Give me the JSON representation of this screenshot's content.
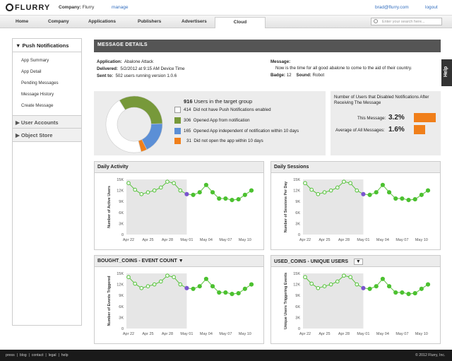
{
  "header": {
    "brand": "FLURRY",
    "company_label": "Company:",
    "company_name": "Flurry",
    "manage": "manage",
    "user": "brad@flurry.com",
    "logout": "logout"
  },
  "nav": {
    "tabs": [
      "Home",
      "Company",
      "Applications",
      "Publishers",
      "Advertisers",
      "Cloud"
    ],
    "active": "Cloud",
    "search_placeholder": "Enter your search here..."
  },
  "sidebar": {
    "push_title": "Push Notifications",
    "items": [
      "App Summary",
      "App Detail",
      "Pending Messages",
      "Message History",
      "Create Message"
    ],
    "user_accounts": "User Accounts",
    "object_store": "Object Store"
  },
  "help": "Help",
  "message_details": {
    "title": "MESSAGE DETAILS",
    "application_label": "Application:",
    "application": "Abalone Attack",
    "delivered_label": "Delivered:",
    "delivered": "5/2/2012  at 9:15 AM Device Time",
    "sent_label": "Sent to:",
    "sent": "502 users running version 1.0.6",
    "message_label": "Message:",
    "message": "Now is the time for all good abalone to come to the aid of their country.",
    "badge_label": "Badge:",
    "badge": "12",
    "sound_label": "Sound:",
    "sound": "Robot"
  },
  "target": {
    "total": "916",
    "total_label": "Users in the target group",
    "rows": [
      {
        "count": "414",
        "label": "Did not have Push Notifications enabled",
        "color": "#ffffff"
      },
      {
        "count": "306",
        "label": "Opened App from notification",
        "color": "#77993a"
      },
      {
        "count": "165",
        "label": "Opened App independent of notification within 10 days",
        "color": "#5b8fd6"
      },
      {
        "count": "31",
        "label": "Did not open the app within 10 days",
        "color": "#f07f1a"
      }
    ]
  },
  "disabled": {
    "title": "Number of Users that Disabled Notifications After Receiving The Message",
    "this_label": "This Message:",
    "this_value": "3.2%",
    "avg_label": "Average of All Messages:",
    "avg_value": "1.6%",
    "this_fraction": 0.032,
    "avg_fraction": 0.016,
    "bar_color": "#f07f1a"
  },
  "charts": {
    "daily_activity": {
      "title": "Daily Activity",
      "ylabel": "Number of Active Users"
    },
    "daily_sessions": {
      "title": "Daily Sessions",
      "ylabel": "Number of Sessions Per Day"
    },
    "bought_coins": {
      "title": "BOUGHT_COINS - EVENT COUNT",
      "ylabel": "Number of Events Triggered"
    },
    "used_coins": {
      "title": "USED_COINS - UNIQUE USERS",
      "ylabel": "Unique Users Triggering Events"
    }
  },
  "chart_data": [
    {
      "type": "line",
      "title": "Daily Activity",
      "ylabel": "Number of Active Users",
      "ylim": [
        0,
        15000
      ],
      "yticks": [
        "15K",
        "12K",
        "9K",
        "6K",
        "3K",
        "0"
      ],
      "xticks": [
        "Apr 22",
        "Apr 25",
        "Apr 28",
        "May 01",
        "May 04",
        "May 07",
        "May 10"
      ],
      "x": [
        "Apr 22",
        "Apr 23",
        "Apr 24",
        "Apr 25",
        "Apr 26",
        "Apr 27",
        "Apr 28",
        "Apr 29",
        "Apr 30",
        "May 01",
        "May 02",
        "May 03",
        "May 04",
        "May 05",
        "May 06",
        "May 07",
        "May 08",
        "May 09",
        "May 10",
        "May 11"
      ],
      "values": [
        14000,
        12200,
        11000,
        11500,
        12000,
        12800,
        14400,
        14000,
        12000,
        11000,
        10800,
        11500,
        13500,
        11500,
        9800,
        9800,
        9400,
        9600,
        10800,
        12000
      ],
      "highlight_index": 9
    },
    {
      "type": "line",
      "title": "Daily Sessions",
      "ylabel": "Number of Sessions Per Day",
      "ylim": [
        0,
        15000
      ],
      "yticks": [
        "15K",
        "12K",
        "9K",
        "6K",
        "3K",
        "0"
      ],
      "xticks": [
        "Apr 22",
        "Apr 25",
        "Apr 28",
        "May 01",
        "May 04",
        "May 07",
        "May 10"
      ],
      "x": [
        "Apr 22",
        "Apr 23",
        "Apr 24",
        "Apr 25",
        "Apr 26",
        "Apr 27",
        "Apr 28",
        "Apr 29",
        "Apr 30",
        "May 01",
        "May 02",
        "May 03",
        "May 04",
        "May 05",
        "May 06",
        "May 07",
        "May 08",
        "May 09",
        "May 10",
        "May 11"
      ],
      "values": [
        14000,
        12200,
        11000,
        11500,
        12000,
        12800,
        14400,
        14000,
        12000,
        11000,
        10800,
        11500,
        13500,
        11500,
        9800,
        9800,
        9400,
        9600,
        10800,
        12000
      ],
      "highlight_index": 9
    },
    {
      "type": "line",
      "title": "BOUGHT_COINS - EVENT COUNT",
      "ylabel": "Number of Events Triggered",
      "ylim": [
        0,
        15000
      ],
      "yticks": [
        "15K",
        "12K",
        "9K",
        "6K",
        "3K",
        "0"
      ],
      "xticks": [
        "Apr 22",
        "Apr 25",
        "Apr 28",
        "May 01",
        "May 04",
        "May 07",
        "May 10"
      ],
      "x": [
        "Apr 22",
        "Apr 23",
        "Apr 24",
        "Apr 25",
        "Apr 26",
        "Apr 27",
        "Apr 28",
        "Apr 29",
        "Apr 30",
        "May 01",
        "May 02",
        "May 03",
        "May 04",
        "May 05",
        "May 06",
        "May 07",
        "May 08",
        "May 09",
        "May 10",
        "May 11"
      ],
      "values": [
        14000,
        12200,
        11000,
        11500,
        12000,
        12800,
        14400,
        14000,
        12000,
        11000,
        10800,
        11500,
        13500,
        11500,
        9800,
        9800,
        9400,
        9600,
        10800,
        12000
      ],
      "highlight_index": 9
    },
    {
      "type": "line",
      "title": "USED_COINS - UNIQUE USERS",
      "ylabel": "Unique Users Triggering Events",
      "ylim": [
        0,
        15000
      ],
      "yticks": [
        "15K",
        "12K",
        "9K",
        "6K",
        "3K",
        "0"
      ],
      "xticks": [
        "Apr 22",
        "Apr 25",
        "Apr 28",
        "May 01",
        "May 04",
        "May 07",
        "May 10"
      ],
      "x": [
        "Apr 22",
        "Apr 23",
        "Apr 24",
        "Apr 25",
        "Apr 26",
        "Apr 27",
        "Apr 28",
        "Apr 29",
        "Apr 30",
        "May 01",
        "May 02",
        "May 03",
        "May 04",
        "May 05",
        "May 06",
        "May 07",
        "May 08",
        "May 09",
        "May 10",
        "May 11"
      ],
      "values": [
        14000,
        12200,
        11000,
        11500,
        12000,
        12800,
        14400,
        14000,
        12000,
        11000,
        10800,
        11500,
        13500,
        11500,
        9800,
        9800,
        9400,
        9600,
        10800,
        12000
      ],
      "highlight_index": 9
    }
  ],
  "pie": {
    "values": [
      414,
      306,
      165,
      31
    ],
    "colors": [
      "#ffffff",
      "#77993a",
      "#5b8fd6",
      "#f07f1a"
    ]
  },
  "footer": {
    "links": [
      "press",
      "blog",
      "contact",
      "legal",
      "help"
    ],
    "copyright": "© 2012 Flurry, Inc."
  }
}
